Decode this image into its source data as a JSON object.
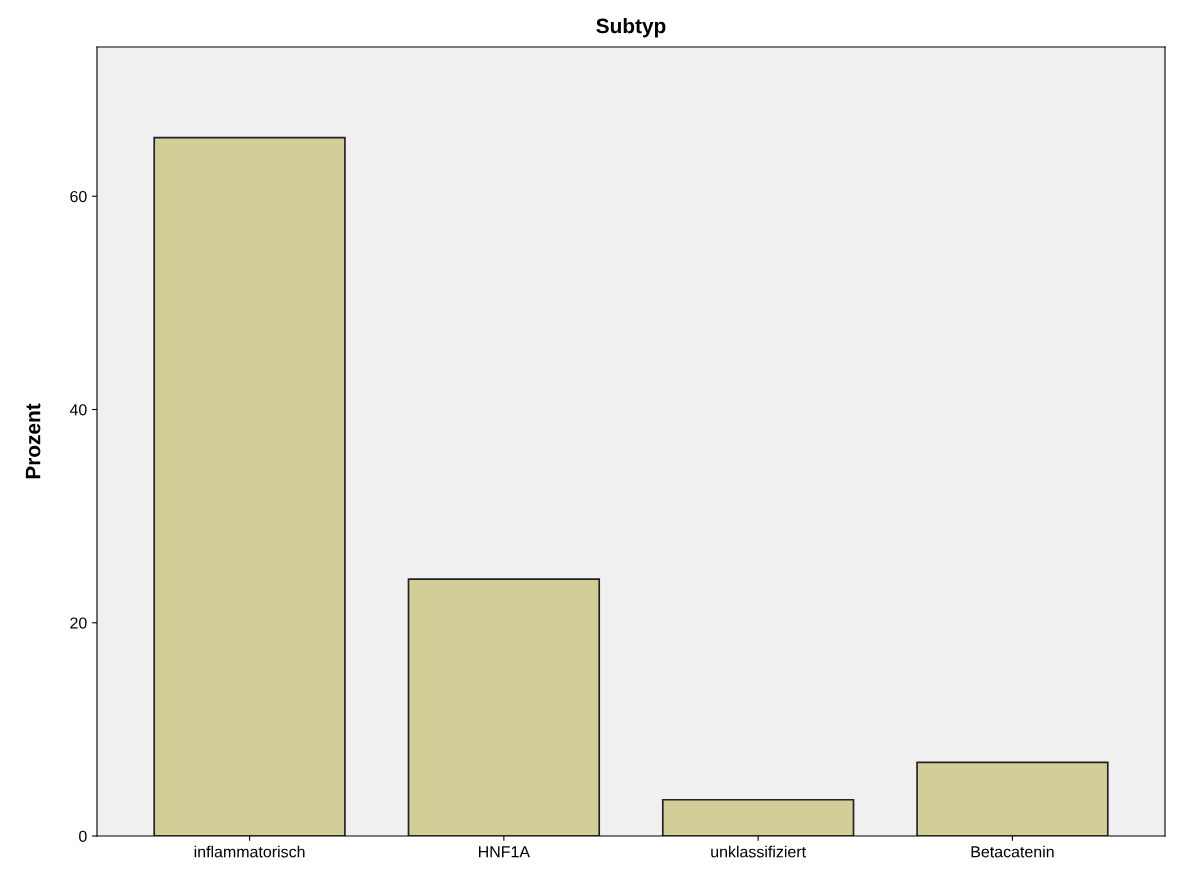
{
  "chart_data": {
    "type": "bar",
    "title": "Subtyp",
    "ylabel": "Prozent",
    "categories": [
      "inflammatorisch",
      "HNF1A",
      "unklassifiziert",
      "Betacatenin"
    ],
    "values": [
      65.5,
      24.1,
      3.4,
      6.9
    ],
    "color": "#d3ce97",
    "ylim": [
      0,
      74
    ],
    "yticks": [
      0,
      20,
      40,
      60
    ],
    "grid": false
  }
}
